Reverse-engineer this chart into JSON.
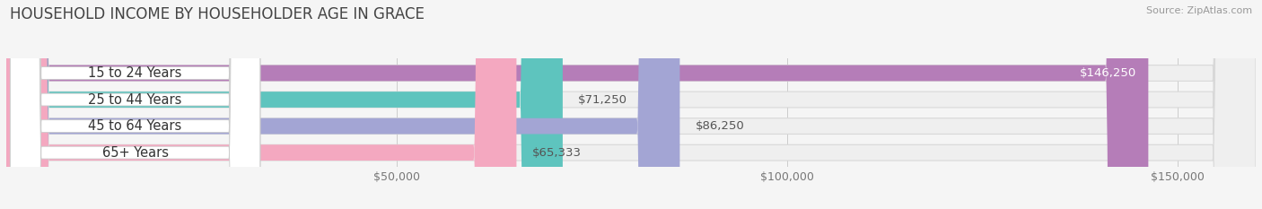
{
  "title": "HOUSEHOLD INCOME BY HOUSEHOLDER AGE IN GRACE",
  "source": "Source: ZipAtlas.com",
  "categories": [
    "15 to 24 Years",
    "25 to 44 Years",
    "45 to 64 Years",
    "65+ Years"
  ],
  "values": [
    146250,
    71250,
    86250,
    65333
  ],
  "bar_colors": [
    "#b57db8",
    "#5ec4be",
    "#a3a5d4",
    "#f4a8c0"
  ],
  "bar_bg_color": "#efefef",
  "bar_edge_color": "#d8d8d8",
  "value_labels": [
    "$146,250",
    "$71,250",
    "$86,250",
    "$65,333"
  ],
  "xlim_max": 160000,
  "xticks": [
    50000,
    100000,
    150000
  ],
  "xtick_labels": [
    "$50,000",
    "$100,000",
    "$150,000"
  ],
  "background_color": "#f5f5f5",
  "title_fontsize": 12,
  "label_fontsize": 10.5,
  "value_fontsize": 9.5,
  "tick_fontsize": 9
}
